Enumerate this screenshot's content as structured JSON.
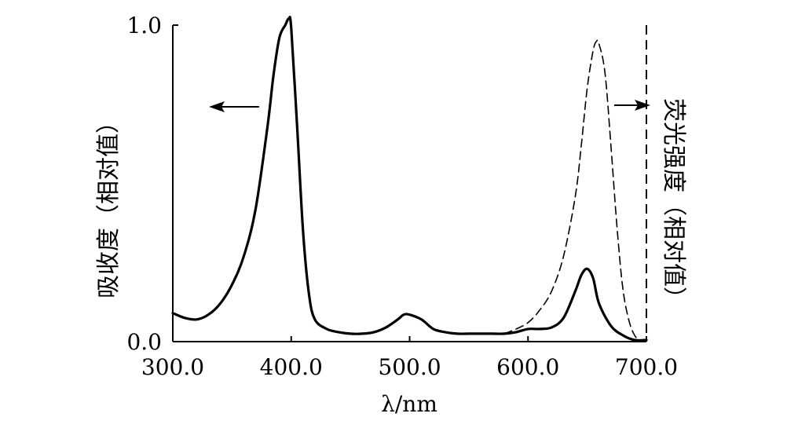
{
  "chart_data": {
    "type": "line",
    "title": "",
    "xlabel": "λ/nm",
    "ylabel_left": "吸收度（相对值）",
    "ylabel_right": "荧光强度（相对值）",
    "xlim": [
      300,
      700
    ],
    "ylim": [
      0,
      1
    ],
    "x_ticks": [
      {
        "value": 300,
        "label": "300.0"
      },
      {
        "value": 400,
        "label": "400.0"
      },
      {
        "value": 500,
        "label": "500.0"
      },
      {
        "value": 600,
        "label": "600.0"
      },
      {
        "value": 700,
        "label": "700.0"
      }
    ],
    "y_ticks": [
      {
        "value": 0,
        "label": "0.0"
      },
      {
        "value": 1,
        "label": "1.0"
      }
    ],
    "grid": false,
    "series": [
      {
        "name": "",
        "style": "solid",
        "color": "#000000",
        "x": [
          300,
          310,
          320,
          330,
          340,
          350,
          360,
          370,
          380,
          385,
          390,
          395,
          398,
          400,
          405,
          410,
          415,
          420,
          430,
          440,
          450,
          460,
          470,
          480,
          490,
          495,
          500,
          510,
          520,
          530,
          540,
          550,
          560,
          570,
          580,
          590,
          600,
          610,
          620,
          630,
          640,
          645,
          650,
          655,
          660,
          670,
          680,
          690,
          700
        ],
        "values": [
          0.09,
          0.075,
          0.07,
          0.085,
          0.12,
          0.18,
          0.27,
          0.42,
          0.68,
          0.84,
          0.96,
          1.0,
          1.02,
          0.99,
          0.68,
          0.35,
          0.15,
          0.07,
          0.04,
          0.03,
          0.025,
          0.025,
          0.03,
          0.045,
          0.07,
          0.085,
          0.085,
          0.07,
          0.04,
          0.03,
          0.025,
          0.025,
          0.025,
          0.025,
          0.025,
          0.03,
          0.04,
          0.04,
          0.045,
          0.075,
          0.16,
          0.21,
          0.23,
          0.2,
          0.12,
          0.05,
          0.02,
          0.005,
          0.005
        ]
      },
      {
        "name": "",
        "style": "dashed",
        "color": "#000000",
        "x": [
          580,
          590,
          600,
          610,
          620,
          630,
          640,
          645,
          650,
          655,
          658,
          660,
          665,
          670,
          675,
          680,
          685,
          690,
          695,
          700
        ],
        "values": [
          0.025,
          0.04,
          0.06,
          0.1,
          0.16,
          0.27,
          0.46,
          0.62,
          0.8,
          0.92,
          0.95,
          0.94,
          0.85,
          0.62,
          0.37,
          0.17,
          0.07,
          0.02,
          0.005,
          0.005
        ]
      }
    ],
    "annotations": [
      {
        "type": "arrow",
        "direction": "left",
        "refers_to": "left-axis"
      },
      {
        "type": "arrow",
        "direction": "right",
        "refers_to": "right-axis"
      }
    ]
  }
}
